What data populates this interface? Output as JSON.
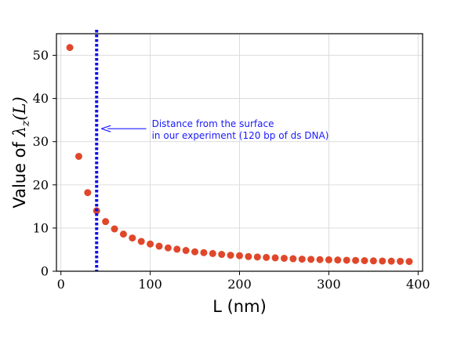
{
  "chart_data": {
    "type": "scatter",
    "xlabel": "L (nm)",
    "ylabel_prefix": "Value of ",
    "ylabel_symbol": "λ",
    "ylabel_sub": "z",
    "ylabel_suffix": "(L)",
    "xlim": [
      -5,
      405
    ],
    "ylim": [
      0,
      55
    ],
    "xticks": [
      0,
      100,
      200,
      300,
      400
    ],
    "yticks": [
      0,
      10,
      20,
      30,
      40,
      50
    ],
    "grid": true,
    "marker_color": "#e0472a",
    "vline": {
      "x": 40,
      "color": "#1010ee",
      "style": "dotted"
    },
    "annotation": {
      "lines": [
        "Distance from the surface",
        "in our experiment (120 bp of ds DNA)"
      ],
      "color": "#1a1aff",
      "arrow_target": [
        40,
        33
      ],
      "text_anchor": [
        100,
        33
      ]
    },
    "x": [
      10,
      20,
      30,
      40,
      50,
      60,
      70,
      80,
      90,
      100,
      110,
      120,
      130,
      140,
      150,
      160,
      170,
      180,
      190,
      200,
      210,
      220,
      230,
      240,
      250,
      260,
      270,
      280,
      290,
      300,
      310,
      320,
      330,
      340,
      350,
      360,
      370,
      380,
      390
    ],
    "y": [
      51.8,
      26.6,
      18.2,
      14.0,
      11.5,
      9.8,
      8.6,
      7.7,
      6.9,
      6.3,
      5.8,
      5.4,
      5.1,
      4.8,
      4.5,
      4.3,
      4.1,
      3.9,
      3.7,
      3.6,
      3.4,
      3.3,
      3.2,
      3.1,
      3.0,
      2.9,
      2.8,
      2.75,
      2.7,
      2.65,
      2.6,
      2.55,
      2.5,
      2.45,
      2.4,
      2.37,
      2.33,
      2.3,
      2.25
    ]
  }
}
